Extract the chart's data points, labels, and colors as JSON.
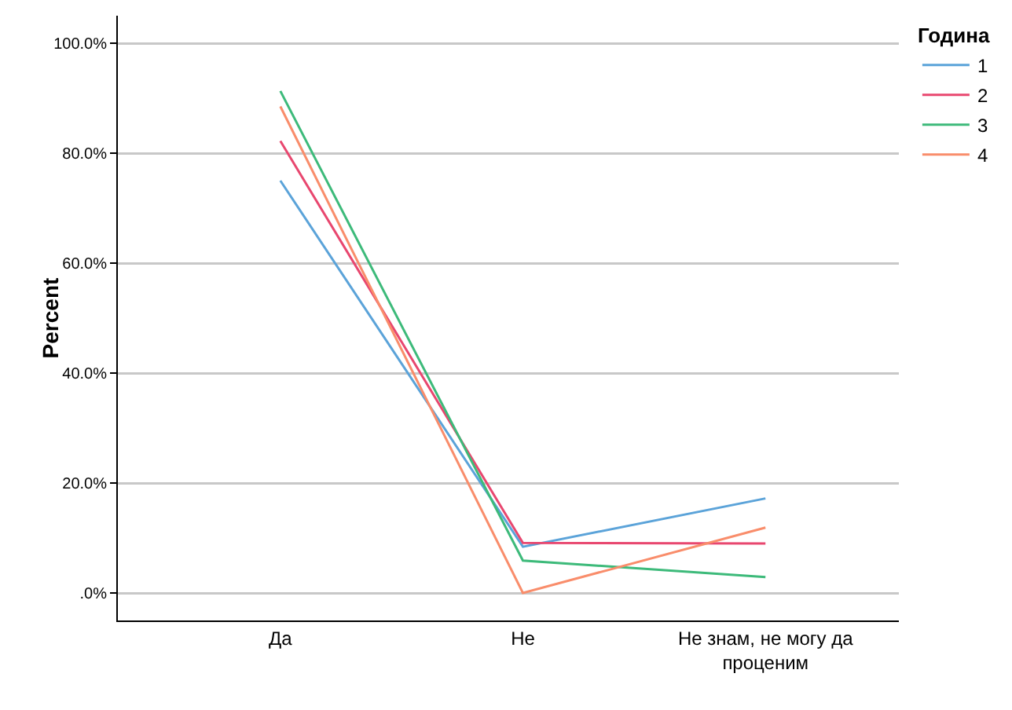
{
  "chart_data": {
    "type": "line",
    "ylabel": "Percent",
    "legend_title": "Година",
    "legend": "top right",
    "categories": [
      "Да",
      "Не",
      "Не знам, не могу да проценим"
    ],
    "series": [
      {
        "name": "1",
        "color": "#5ba3d9",
        "values": [
          75.0,
          8.4,
          17.2
        ]
      },
      {
        "name": "2",
        "color": "#e8476f",
        "values": [
          82.2,
          9.1,
          9.0
        ]
      },
      {
        "name": "3",
        "color": "#3dba7a",
        "values": [
          91.3,
          5.9,
          2.9
        ]
      },
      {
        "name": "4",
        "color": "#f98d6b",
        "values": [
          88.5,
          0.0,
          11.9
        ]
      }
    ],
    "ylim": [
      -5,
      105
    ],
    "yticks": [
      {
        "value": 0,
        "label": ".0%"
      },
      {
        "value": 20,
        "label": "20.0%"
      },
      {
        "value": 40,
        "label": "40.0%"
      },
      {
        "value": 60,
        "label": "60.0%"
      },
      {
        "value": 80,
        "label": "80.0%"
      },
      {
        "value": 100,
        "label": "100.0%"
      }
    ],
    "grid": "y",
    "marker": "none",
    "line_style": "solid"
  }
}
